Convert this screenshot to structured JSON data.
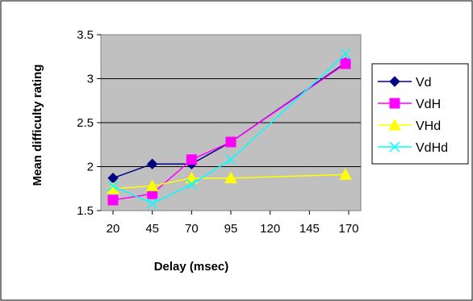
{
  "chart_data": {
    "type": "line",
    "title": "",
    "xlabel": "Delay (msec)",
    "ylabel": "Mean difficulty rating",
    "x_ticks": [
      "20",
      "45",
      "70",
      "95",
      "120",
      "145",
      "170"
    ],
    "y_ticks": [
      "1.5",
      "2",
      "2.5",
      "3",
      "3.5"
    ],
    "xlim": [
      20,
      170
    ],
    "ylim": [
      1.5,
      3.5
    ],
    "grid": "horizontal",
    "plot_background": "#c0c0c0",
    "legend_position": "right",
    "series": [
      {
        "name": "Vd",
        "color": "#000080",
        "marker": "diamond",
        "points": [
          [
            20,
            1.87
          ],
          [
            45,
            2.03
          ],
          [
            70,
            2.03
          ],
          [
            95,
            2.28
          ],
          [
            168,
            3.18
          ]
        ]
      },
      {
        "name": "VdH",
        "color": "#ff00ff",
        "marker": "square",
        "points": [
          [
            20,
            1.62
          ],
          [
            45,
            1.69
          ],
          [
            70,
            2.08
          ],
          [
            95,
            2.28
          ],
          [
            168,
            3.17
          ]
        ]
      },
      {
        "name": "VHd",
        "color": "#ffff00",
        "marker": "triangle",
        "points": [
          [
            20,
            1.75
          ],
          [
            45,
            1.78
          ],
          [
            70,
            1.87
          ],
          [
            95,
            1.87
          ],
          [
            168,
            1.91
          ]
        ]
      },
      {
        "name": "VdHd",
        "color": "#00ffff",
        "marker": "x",
        "points": [
          [
            20,
            1.78
          ],
          [
            45,
            1.58
          ],
          [
            70,
            1.8
          ],
          [
            95,
            2.08
          ],
          [
            168,
            3.28
          ]
        ]
      }
    ]
  }
}
